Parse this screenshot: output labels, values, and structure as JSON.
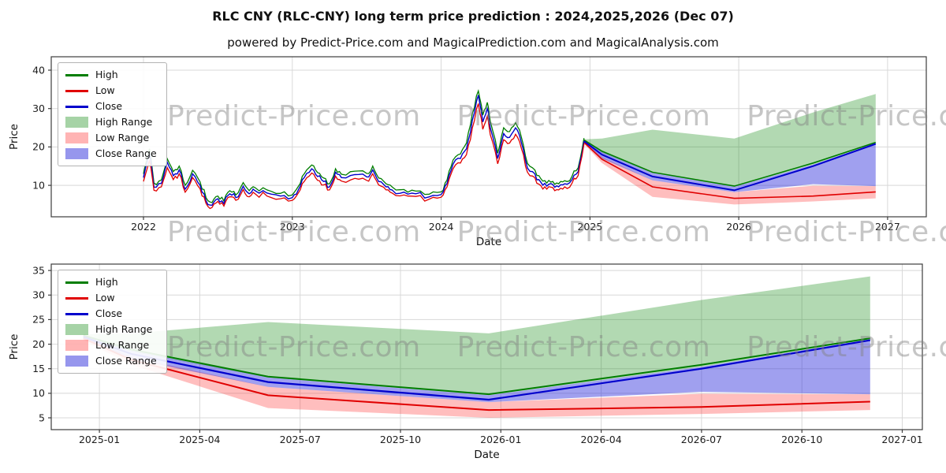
{
  "page": {
    "title": "RLC CNY (RLC-CNY) long term price prediction : 2024,2025,2026 (Dec 07)",
    "subtitle": "powered by Predict-Price.com and MagicalPrediction.com and MagicalAnalysis.com"
  },
  "watermark": {
    "text": "Predict-Price.com"
  },
  "legend": {
    "items": [
      {
        "label": "High",
        "swatch": "line",
        "color": "#007d00"
      },
      {
        "label": "Low",
        "swatch": "line",
        "color": "#e00000"
      },
      {
        "label": "Close",
        "swatch": "line",
        "color": "#0000cc"
      },
      {
        "label": "High Range",
        "swatch": "patch",
        "color": "rgba(0,128,0,0.35)"
      },
      {
        "label": "Low Range",
        "swatch": "patch",
        "color": "rgba(255,40,40,0.35)"
      },
      {
        "label": "Close Range",
        "swatch": "patch",
        "color": "rgba(45,45,220,0.5)"
      }
    ]
  },
  "chart_data": {
    "colors": {
      "high": "#007d00",
      "low": "#e00000",
      "close": "#0000cc",
      "high_range": "rgba(0,128,0,0.3)",
      "low_range": "rgba(255,40,40,0.3)",
      "close_range": "rgba(45,45,220,0.45)",
      "grid": "#d8d8d8",
      "spine": "#3c3c3c",
      "tick_text": "#1c1c1c"
    },
    "charts": [
      {
        "name": "history-and-forecast",
        "type": "line",
        "xlabel": "Date",
        "ylabel": "Price",
        "xlim": [
          2021.38,
          2027.26
        ],
        "ylim": [
          1.8,
          43.5
        ],
        "xticks": [
          {
            "v": 2022,
            "l": "2022"
          },
          {
            "v": 2023,
            "l": "2023"
          },
          {
            "v": 2024,
            "l": "2024"
          },
          {
            "v": 2025,
            "l": "2025"
          },
          {
            "v": 2026,
            "l": "2026"
          },
          {
            "v": 2027,
            "l": "2027"
          }
        ],
        "yticks": [
          {
            "v": 10,
            "l": "10"
          },
          {
            "v": 20,
            "l": "20"
          },
          {
            "v": 30,
            "l": "30"
          },
          {
            "v": 40,
            "l": "40"
          }
        ]
      },
      {
        "name": "forecast-detail",
        "type": "line",
        "xlabel": "Date",
        "ylabel": "Price",
        "xlim": [
          2024.88,
          2027.05
        ],
        "ylim": [
          2.6,
          36.3
        ],
        "xticks": [
          {
            "v": 2025.0,
            "l": "2025-01"
          },
          {
            "v": 2025.25,
            "l": "2025-04"
          },
          {
            "v": 2025.5,
            "l": "2025-07"
          },
          {
            "v": 2025.75,
            "l": "2025-10"
          },
          {
            "v": 2026.0,
            "l": "2026-01"
          },
          {
            "v": 2026.25,
            "l": "2026-04"
          },
          {
            "v": 2026.5,
            "l": "2026-07"
          },
          {
            "v": 2026.75,
            "l": "2026-10"
          },
          {
            "v": 2027.0,
            "l": "2027-01"
          }
        ],
        "yticks": [
          {
            "v": 5,
            "l": "5"
          },
          {
            "v": 10,
            "l": "10"
          },
          {
            "v": 15,
            "l": "15"
          },
          {
            "v": 20,
            "l": "20"
          },
          {
            "v": 25,
            "l": "25"
          },
          {
            "v": 30,
            "l": "30"
          },
          {
            "v": 35,
            "l": "35"
          }
        ]
      }
    ],
    "historical": {
      "columns": [
        "year_fraction",
        "low",
        "close",
        "high"
      ],
      "rows": [
        [
          2022.0,
          11.0,
          12.0,
          13.0
        ],
        [
          2022.04,
          16.5,
          18.5,
          19.5
        ],
        [
          2022.07,
          8.7,
          9.5,
          10.6
        ],
        [
          2022.12,
          9.6,
          10.5,
          11.4
        ],
        [
          2022.16,
          14.6,
          16.0,
          16.9
        ],
        [
          2022.2,
          11.5,
          12.5,
          13.6
        ],
        [
          2022.24,
          13.0,
          14.0,
          15.0
        ],
        [
          2022.28,
          8.2,
          9.0,
          10.0
        ],
        [
          2022.33,
          12.0,
          13.0,
          13.9
        ],
        [
          2022.38,
          9.1,
          10.0,
          10.9
        ],
        [
          2022.42,
          5.3,
          6.0,
          6.8
        ],
        [
          2022.46,
          4.2,
          4.8,
          5.5
        ],
        [
          2022.5,
          5.8,
          6.5,
          7.2
        ],
        [
          2022.54,
          4.6,
          5.2,
          5.9
        ],
        [
          2022.58,
          7.0,
          7.8,
          8.6
        ],
        [
          2022.62,
          6.1,
          6.8,
          7.5
        ],
        [
          2022.67,
          8.9,
          9.8,
          10.7
        ],
        [
          2022.71,
          7.0,
          7.8,
          8.6
        ],
        [
          2022.75,
          7.8,
          8.6,
          9.4
        ],
        [
          2022.83,
          7.2,
          8.0,
          8.8
        ],
        [
          2022.92,
          6.5,
          7.2,
          7.9
        ],
        [
          2023.0,
          6.1,
          6.8,
          7.5
        ],
        [
          2023.04,
          8.0,
          8.8,
          9.7
        ],
        [
          2023.08,
          11.0,
          12.0,
          13.0
        ],
        [
          2023.13,
          13.2,
          14.3,
          15.3
        ],
        [
          2023.17,
          11.3,
          12.3,
          13.3
        ],
        [
          2023.21,
          10.1,
          11.0,
          11.9
        ],
        [
          2023.25,
          8.8,
          9.6,
          10.4
        ],
        [
          2023.29,
          12.4,
          13.4,
          14.3
        ],
        [
          2023.33,
          11.1,
          12.0,
          12.9
        ],
        [
          2023.42,
          11.8,
          12.8,
          13.7
        ],
        [
          2023.5,
          11.3,
          12.2,
          13.1
        ],
        [
          2023.54,
          13.0,
          14.0,
          15.0
        ],
        [
          2023.58,
          10.1,
          11.0,
          11.9
        ],
        [
          2023.63,
          8.8,
          9.6,
          10.4
        ],
        [
          2023.67,
          8.0,
          8.8,
          9.6
        ],
        [
          2023.75,
          7.5,
          8.2,
          8.9
        ],
        [
          2023.83,
          7.1,
          7.8,
          8.5
        ],
        [
          2023.92,
          6.4,
          7.0,
          7.7
        ],
        [
          2024.0,
          6.9,
          7.6,
          8.3
        ],
        [
          2024.04,
          9.6,
          10.5,
          11.4
        ],
        [
          2024.08,
          14.3,
          15.5,
          16.6
        ],
        [
          2024.13,
          15.8,
          17.0,
          18.2
        ],
        [
          2024.17,
          18.0,
          19.5,
          21.0
        ],
        [
          2024.21,
          25.0,
          27.0,
          28.8
        ],
        [
          2024.25,
          31.3,
          33.5,
          34.6
        ],
        [
          2024.28,
          24.6,
          26.5,
          28.3
        ],
        [
          2024.31,
          28.0,
          30.0,
          31.6
        ],
        [
          2024.33,
          23.2,
          25.0,
          26.7
        ],
        [
          2024.38,
          15.6,
          17.0,
          18.4
        ],
        [
          2024.42,
          21.9,
          23.5,
          25.0
        ],
        [
          2024.46,
          21.0,
          22.5,
          24.0
        ],
        [
          2024.5,
          23.3,
          25.0,
          26.3
        ],
        [
          2024.54,
          19.5,
          21.0,
          22.4
        ],
        [
          2024.58,
          13.4,
          14.5,
          15.7
        ],
        [
          2024.63,
          12.0,
          13.0,
          14.0
        ],
        [
          2024.67,
          9.9,
          10.8,
          11.7
        ],
        [
          2024.71,
          9.0,
          9.8,
          10.6
        ],
        [
          2024.75,
          9.4,
          10.2,
          11.0
        ],
        [
          2024.79,
          8.8,
          9.6,
          10.4
        ],
        [
          2024.83,
          9.6,
          10.4,
          11.2
        ],
        [
          2024.88,
          10.6,
          11.5,
          12.4
        ],
        [
          2024.92,
          12.5,
          13.5,
          14.5
        ],
        [
          2024.96,
          20.8,
          21.5,
          22.3
        ]
      ]
    },
    "prediction": {
      "x": [
        2024.96,
        2025.08,
        2025.42,
        2025.97,
        2026.5,
        2026.92
      ],
      "close": [
        21.5,
        18.0,
        12.3,
        8.7,
        15.0,
        20.8
      ],
      "close_range_low": [
        21.0,
        17.0,
        11.3,
        8.2,
        10.3,
        9.8
      ],
      "close_range_high": [
        21.9,
        18.7,
        13.2,
        9.6,
        15.4,
        21.0
      ],
      "low": [
        21.2,
        16.8,
        9.6,
        6.6,
        7.2,
        8.3
      ],
      "low_range_low": [
        20.8,
        15.8,
        7.0,
        5.0,
        5.8,
        6.6
      ],
      "low_range_high": [
        21.5,
        17.4,
        11.3,
        8.2,
        9.9,
        9.8
      ],
      "high": [
        21.8,
        18.9,
        13.4,
        9.8,
        15.8,
        21.2
      ],
      "high_range_low": [
        21.3,
        18.5,
        13.2,
        9.6,
        15.4,
        21.0
      ],
      "high_range_high": [
        22.0,
        22.2,
        24.5,
        22.2,
        29.0,
        33.8
      ]
    }
  }
}
